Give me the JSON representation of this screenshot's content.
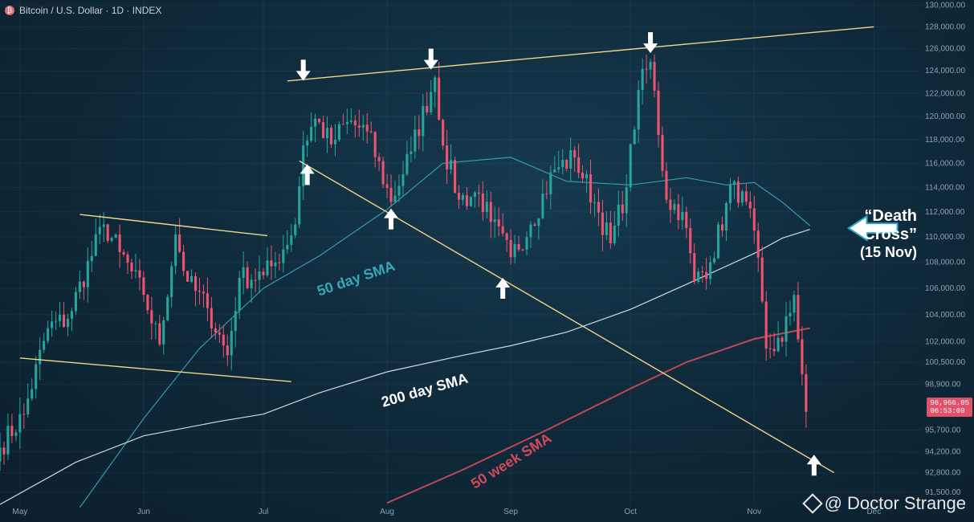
{
  "header": {
    "title": "Bitcoin / U.S. Dollar · 1D · INDEX",
    "logo_glyph": "₿"
  },
  "watermark": {
    "text": "@ Doctor Strange"
  },
  "price_tag": {
    "price": "96,966.05",
    "time": "06:53:09",
    "color": "#e0526a"
  },
  "annotation": {
    "line1": "“Death",
    "line2": "Cross”",
    "line3": "(15 Nov)"
  },
  "colors": {
    "up": "#26a69a",
    "down": "#ef5370",
    "sma50": "#3aa6b9",
    "sma200": "#e6edf3",
    "sma50w": "#d14a5c",
    "trend": "#f0d58a",
    "arrow": "#ffffff"
  },
  "chart_data": {
    "type": "candlestick",
    "title": "Bitcoin / U.S. Dollar · 1D · INDEX",
    "y_scale": "log",
    "ylim": [
      90600,
      130500
    ],
    "yticks": [
      {
        "value": 130000,
        "label": "130,000.00"
      },
      {
        "value": 128000,
        "label": "128,000.00"
      },
      {
        "value": 126000,
        "label": "126,000.00"
      },
      {
        "value": 124000,
        "label": "124,000.00"
      },
      {
        "value": 122000,
        "label": "122,000.00"
      },
      {
        "value": 120000,
        "label": "120,000.00"
      },
      {
        "value": 118000,
        "label": "118,000.00"
      },
      {
        "value": 116000,
        "label": "116,000.00"
      },
      {
        "value": 114000,
        "label": "114,000.00"
      },
      {
        "value": 112000,
        "label": "112,000.00"
      },
      {
        "value": 110000,
        "label": "110,000.00"
      },
      {
        "value": 108000,
        "label": "108,000.00"
      },
      {
        "value": 106000,
        "label": "106,000.00"
      },
      {
        "value": 104000,
        "label": "104,000.00"
      },
      {
        "value": 102000,
        "label": "102,000.00"
      },
      {
        "value": 100500,
        "label": "100,500.00"
      },
      {
        "value": 98900,
        "label": "98,900.00"
      },
      {
        "value": 95700,
        "label": "95,700.00"
      },
      {
        "value": 94200,
        "label": "94,200.00"
      },
      {
        "value": 92800,
        "label": "92,800.00"
      },
      {
        "value": 91500,
        "label": "91,500.00"
      }
    ],
    "xlim": [
      "2025-04-26",
      "2025-12-13"
    ],
    "xticks": [
      {
        "date": "2025-05-01",
        "label": "May"
      },
      {
        "date": "2025-06-01",
        "label": "Jun"
      },
      {
        "date": "2025-07-01",
        "label": "Jul"
      },
      {
        "date": "2025-08-01",
        "label": "Aug"
      },
      {
        "date": "2025-09-01",
        "label": "Sep"
      },
      {
        "date": "2025-10-01",
        "label": "Oct"
      },
      {
        "date": "2025-11-01",
        "label": "Nov"
      },
      {
        "date": "2025-12-01",
        "label": "Dec"
      }
    ],
    "anchors": [
      {
        "date": "2025-04-26",
        "close": 94500
      },
      {
        "date": "2025-05-02",
        "close": 96800
      },
      {
        "date": "2025-05-08",
        "close": 103000
      },
      {
        "date": "2025-05-13",
        "close": 103700
      },
      {
        "date": "2025-05-22",
        "close": 111000
      },
      {
        "date": "2025-05-26",
        "close": 108800
      },
      {
        "date": "2025-06-01",
        "close": 105500
      },
      {
        "date": "2025-06-05",
        "close": 101800
      },
      {
        "date": "2025-06-09",
        "close": 110200
      },
      {
        "date": "2025-06-12",
        "close": 106500
      },
      {
        "date": "2025-06-17",
        "close": 104500
      },
      {
        "date": "2025-06-22",
        "close": 101000
      },
      {
        "date": "2025-06-25",
        "close": 106800
      },
      {
        "date": "2025-07-01",
        "close": 107000
      },
      {
        "date": "2025-07-04",
        "close": 108000
      },
      {
        "date": "2025-07-09",
        "close": 111000
      },
      {
        "date": "2025-07-11",
        "close": 117500
      },
      {
        "date": "2025-07-14",
        "close": 119800
      },
      {
        "date": "2025-07-18",
        "close": 117600
      },
      {
        "date": "2025-07-22",
        "close": 119500
      },
      {
        "date": "2025-07-27",
        "close": 118700
      },
      {
        "date": "2025-08-02",
        "close": 112800
      },
      {
        "date": "2025-08-07",
        "close": 117000
      },
      {
        "date": "2025-08-13",
        "close": 123400
      },
      {
        "date": "2025-08-15",
        "close": 117500
      },
      {
        "date": "2025-08-19",
        "close": 113000
      },
      {
        "date": "2025-08-24",
        "close": 113500
      },
      {
        "date": "2025-08-27",
        "close": 111200
      },
      {
        "date": "2025-09-01",
        "close": 108400
      },
      {
        "date": "2025-09-06",
        "close": 111000
      },
      {
        "date": "2025-09-12",
        "close": 115500
      },
      {
        "date": "2025-09-17",
        "close": 116500
      },
      {
        "date": "2025-09-22",
        "close": 112800
      },
      {
        "date": "2025-09-26",
        "close": 109500
      },
      {
        "date": "2025-09-30",
        "close": 114000
      },
      {
        "date": "2025-10-03",
        "close": 122300
      },
      {
        "date": "2025-10-06",
        "close": 124800
      },
      {
        "date": "2025-10-10",
        "close": 113000
      },
      {
        "date": "2025-10-14",
        "close": 112000
      },
      {
        "date": "2025-10-17",
        "close": 106500
      },
      {
        "date": "2025-10-21",
        "close": 108000
      },
      {
        "date": "2025-10-27",
        "close": 114500
      },
      {
        "date": "2025-11-01",
        "close": 110500
      },
      {
        "date": "2025-11-04",
        "close": 101500
      },
      {
        "date": "2025-11-08",
        "close": 102000
      },
      {
        "date": "2025-11-11",
        "close": 105500
      },
      {
        "date": "2025-11-14",
        "close": 96966
      }
    ],
    "series": [
      {
        "name": "50 day SMA",
        "points": [
          [
            "2025-05-16",
            90500
          ],
          [
            "2025-06-01",
            96500
          ],
          [
            "2025-06-15",
            101500
          ],
          [
            "2025-07-01",
            106000
          ],
          [
            "2025-07-15",
            108500
          ],
          [
            "2025-08-01",
            112200
          ],
          [
            "2025-08-15",
            116000
          ],
          [
            "2025-09-01",
            116500
          ],
          [
            "2025-09-15",
            114500
          ],
          [
            "2025-10-01",
            114200
          ],
          [
            "2025-10-15",
            114800
          ],
          [
            "2025-10-25",
            114200
          ],
          [
            "2025-11-01",
            114400
          ],
          [
            "2025-11-08",
            112800
          ],
          [
            "2025-11-15",
            110900
          ]
        ]
      },
      {
        "name": "200 day SMA",
        "points": [
          [
            "2025-04-26",
            90700
          ],
          [
            "2025-05-15",
            93500
          ],
          [
            "2025-06-01",
            95300
          ],
          [
            "2025-06-20",
            96300
          ],
          [
            "2025-07-01",
            96800
          ],
          [
            "2025-07-15",
            98300
          ],
          [
            "2025-08-01",
            99800
          ],
          [
            "2025-08-20",
            101000
          ],
          [
            "2025-09-01",
            101700
          ],
          [
            "2025-09-15",
            102700
          ],
          [
            "2025-10-01",
            104400
          ],
          [
            "2025-10-15",
            106300
          ],
          [
            "2025-11-01",
            108700
          ],
          [
            "2025-11-08",
            109900
          ],
          [
            "2025-11-15",
            110600
          ]
        ]
      },
      {
        "name": "50 week SMA",
        "points": [
          [
            "2025-08-01",
            90800
          ],
          [
            "2025-08-20",
            93000
          ],
          [
            "2025-09-10",
            95700
          ],
          [
            "2025-10-01",
            98600
          ],
          [
            "2025-10-15",
            100500
          ],
          [
            "2025-11-01",
            102200
          ],
          [
            "2025-11-15",
            103000
          ]
        ]
      }
    ],
    "trendlines": [
      {
        "from": [
          "2025-07-07",
          123100
        ],
        "to": [
          "2025-12-01",
          128000
        ]
      },
      {
        "from": [
          "2025-07-10",
          116200
        ],
        "to": [
          "2025-11-21",
          92800
        ]
      },
      {
        "from": [
          "2025-05-16",
          111800
        ],
        "to": [
          "2025-07-02",
          110100
        ]
      },
      {
        "from": [
          "2025-05-01",
          100800
        ],
        "to": [
          "2025-07-08",
          99100
        ]
      }
    ],
    "arrows": [
      {
        "date": "2025-07-11",
        "price": 125000,
        "dir": "down"
      },
      {
        "date": "2025-08-12",
        "price": 126000,
        "dir": "down"
      },
      {
        "date": "2025-10-06",
        "price": 127500,
        "dir": "down"
      },
      {
        "date": "2025-07-12",
        "price": 114200,
        "dir": "up"
      },
      {
        "date": "2025-08-02",
        "price": 110600,
        "dir": "up"
      },
      {
        "date": "2025-08-30",
        "price": 105200,
        "dir": "up"
      },
      {
        "date": "2025-11-16",
        "price": 92600,
        "dir": "up"
      },
      {
        "date": "2025-11-25",
        "price": 110700,
        "dir": "left"
      }
    ],
    "labels": [
      {
        "text": "50 day SMA",
        "date": "2025-07-15",
        "price": 105400,
        "rotate": -19,
        "series": "sma50"
      },
      {
        "text": "200 day SMA",
        "date": "2025-07-31",
        "price": 97300,
        "rotate": -16,
        "series": "sma200"
      },
      {
        "text": "50 week SMA",
        "date": "2025-08-23",
        "price": 91700,
        "rotate": -32,
        "series": "sma50w"
      }
    ]
  }
}
